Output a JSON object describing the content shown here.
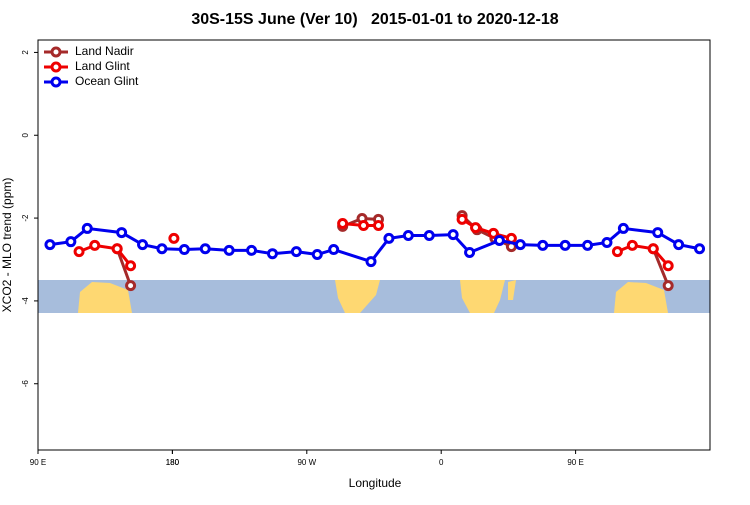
{
  "chart_data": {
    "type": "line",
    "title": "30S-15S June (Ver 10)   2015-01-01 to 2020-12-18",
    "xlabel": "Longitude",
    "ylabel": "XCO2 - MLO trend (ppm)",
    "xlim": [
      90,
      540
    ],
    "ylim": [
      -7.6,
      2.3
    ],
    "xticks": [
      {
        "value": 90,
        "label": "90 E"
      },
      180,
      {
        "value": 270,
        "label": "90 W"
      },
      {
        "value": 360,
        "label": "0"
      },
      {
        "value": 450,
        "label": "90 E"
      },
      180
    ],
    "yticks": [
      -6,
      -4,
      -2,
      0,
      2
    ],
    "legend": "top-left",
    "series": [
      {
        "name": "Land Nadir",
        "color": "#a52a2a",
        "x": [
          143,
          152,
          null,
          294,
          307,
          318,
          null,
          374,
          384,
          396,
          407,
          null,
          502,
          512
        ],
        "values": [
          -2.74,
          -3.63,
          null,
          -2.2,
          -2.01,
          -2.03,
          null,
          -1.94,
          -2.28,
          -2.49,
          -2.69,
          null,
          -2.74,
          -3.63
        ]
      },
      {
        "name": "Land Glint",
        "color": "#ee0000",
        "x": [
          117.5,
          128,
          143,
          152,
          null,
          181,
          null,
          294,
          308,
          318,
          null,
          374,
          383,
          395,
          407,
          null,
          478,
          488,
          502,
          512
        ],
        "values": [
          -2.81,
          -2.66,
          -2.74,
          -3.15,
          null,
          -2.49,
          null,
          -2.13,
          -2.18,
          -2.18,
          null,
          -2.03,
          -2.23,
          -2.37,
          -2.49,
          null,
          -2.81,
          -2.66,
          -2.74,
          -3.15
        ]
      },
      {
        "name": "Ocean Glint",
        "color": "#0000ee",
        "x": [
          98,
          112,
          123,
          146,
          160,
          173,
          188,
          202,
          218,
          233,
          247,
          263,
          277,
          288,
          313,
          325,
          338,
          352,
          368,
          379,
          399,
          413,
          428,
          443,
          458,
          471,
          482,
          505,
          519,
          533
        ],
        "values": [
          -2.64,
          -2.57,
          -2.25,
          -2.35,
          -2.64,
          -2.74,
          -2.76,
          -2.74,
          -2.78,
          -2.78,
          -2.86,
          -2.81,
          -2.88,
          -2.76,
          -3.05,
          -2.49,
          -2.42,
          -2.42,
          -2.4,
          -2.83,
          -2.54,
          -2.64,
          -2.66,
          -2.66,
          -2.66,
          -2.59,
          -2.25,
          -2.35,
          -2.64,
          -2.74
        ]
      }
    ]
  }
}
